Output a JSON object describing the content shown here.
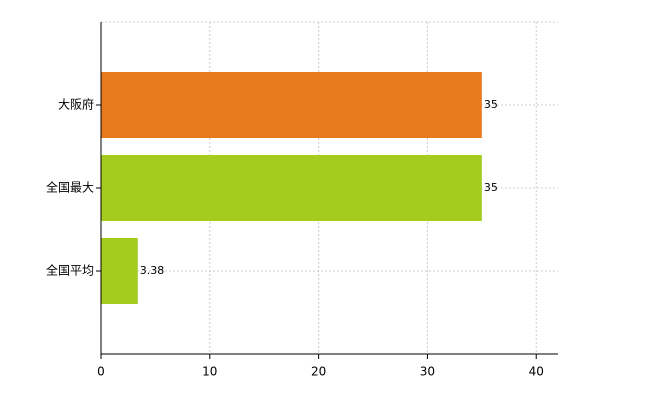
{
  "chart_data": {
    "type": "bar",
    "orientation": "horizontal",
    "categories": [
      "大阪府",
      "全国最大",
      "全国平均"
    ],
    "values": [
      35,
      35,
      3.38
    ],
    "colors": [
      "#e87a1e",
      "#a3cc1e",
      "#a3cc1e"
    ],
    "xlim": [
      0,
      42
    ],
    "xticks": [
      0,
      10,
      20,
      30,
      40
    ],
    "grid": true
  }
}
